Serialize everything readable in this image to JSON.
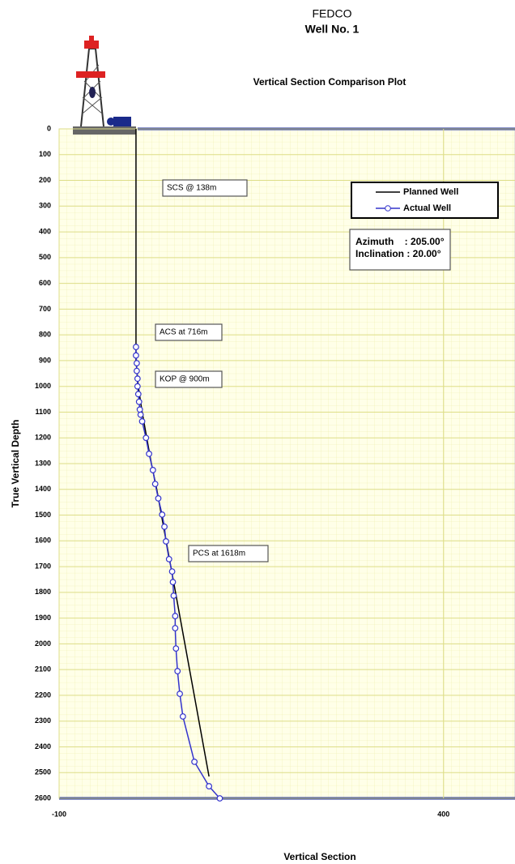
{
  "chart_data": {
    "type": "line",
    "title": "FEDCO",
    "subtitle": "Well No. 1",
    "plot_title": "Vertical Section Comparison Plot",
    "x_label": "Vertical Section",
    "y_label": "True Vertical Depth",
    "xlim": [
      -100,
      493
    ],
    "ylim": [
      0,
      2600
    ],
    "y_inverted": true,
    "xticks": [
      -100,
      400
    ],
    "yticks": [
      0,
      100,
      200,
      300,
      400,
      500,
      600,
      700,
      800,
      900,
      1000,
      1100,
      1200,
      1300,
      1400,
      1500,
      1600,
      1700,
      1800,
      1900,
      2000,
      2100,
      2200,
      2300,
      2400,
      2500,
      2600
    ],
    "grid": true,
    "series": [
      {
        "name": "Planned Well",
        "color": "#000000",
        "markers": false,
        "x": [
          0,
          0,
          3,
          8,
          14,
          20,
          27,
          95
        ],
        "values": [
          0,
          900,
          1000,
          1100,
          1200,
          1300,
          1400,
          2515
        ]
      },
      {
        "name": "Actual Well",
        "color": "#3333cc",
        "markers": true,
        "x": [
          0,
          0,
          1,
          1,
          2,
          2,
          3,
          4,
          5,
          6,
          8,
          13,
          17,
          22,
          25,
          29,
          34,
          37,
          39,
          43,
          47,
          48,
          49,
          51,
          51,
          52,
          54,
          57,
          61,
          76,
          95,
          109
        ],
        "values": [
          847,
          880,
          910,
          940,
          970,
          1000,
          1030,
          1060,
          1090,
          1110,
          1136,
          1200,
          1262,
          1325,
          1379,
          1435,
          1498,
          1545,
          1602,
          1671,
          1719,
          1760,
          1813,
          1892,
          1939,
          2018,
          2106,
          2194,
          2282,
          2458,
          2553,
          2600
        ]
      }
    ],
    "annotations": [
      "SCS @ 138m",
      "ACS at 716m",
      "KOP @ 900m",
      "PCS at 1618m"
    ],
    "info": [
      "Azimuth    : 205.00°",
      "Inclination : 20.00°"
    ]
  }
}
